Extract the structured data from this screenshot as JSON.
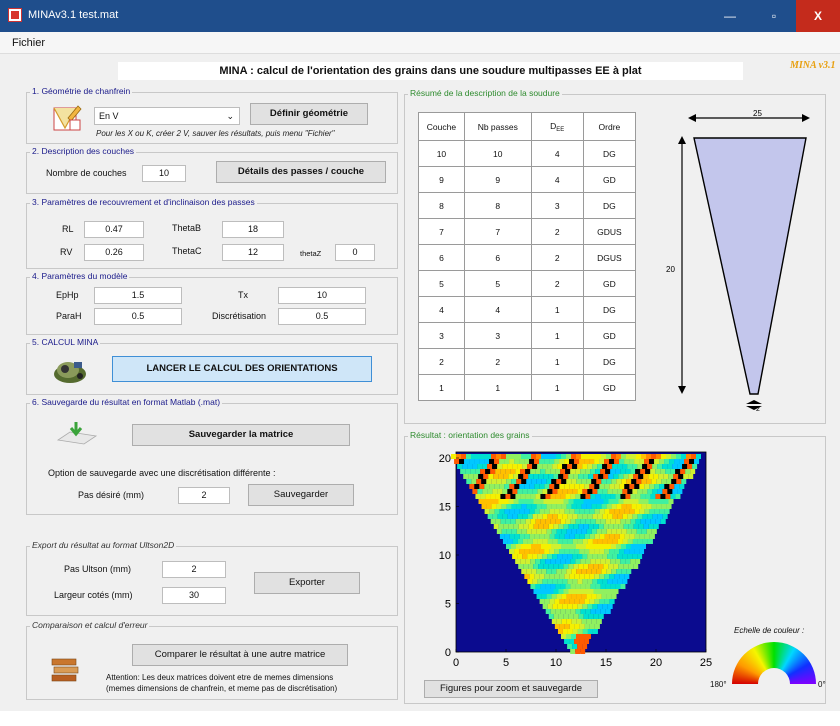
{
  "window": {
    "title": "MINAv3.1 test.mat",
    "minimize": "—",
    "maximize": "▫",
    "close": "X"
  },
  "menu": {
    "fichier": "Fichier"
  },
  "header": {
    "title": "MINA : calcul de l'orientation des grains dans une soudure multipasses EE à plat",
    "version": "MINA v3.1"
  },
  "geometry": {
    "title": "1. Géométrie de chanfrein",
    "selected": "En V",
    "define_button": "Définir géométrie",
    "hint": "Pour les X ou K, créer 2 V, sauver les résultats, puis menu \"Fichier\""
  },
  "layers": {
    "title": "2. Description des couches",
    "count_label": "Nombre de couches",
    "count_value": "10",
    "details_button": "Détails des passes / couche"
  },
  "overlap": {
    "title": "3. Paramètres de recouvrement et d'inclinaison des passes",
    "rl_label": "RL",
    "rl_value": "0.47",
    "rv_label": "RV",
    "rv_value": "0.26",
    "thetab_label": "ThetaB",
    "thetab_value": "18",
    "thetac_label": "ThetaC",
    "thetac_value": "12",
    "thetaz_label": "thetaZ",
    "thetaz_value": "0"
  },
  "model": {
    "title": "4. Paramètres du modèle",
    "ephp_label": "EpHp",
    "ephp_value": "1.5",
    "parah_label": "ParaH",
    "parah_value": "0.5",
    "tx_label": "Tx",
    "tx_value": "10",
    "discret_label": "Discrétisation",
    "discret_value": "0.5"
  },
  "calc": {
    "title": "5. CALCUL MINA",
    "button": "LANCER LE CALCUL DES ORIENTATIONS"
  },
  "save": {
    "title": "6. Sauvegarde du résultat en format Matlab (.mat)",
    "save_button": "Sauvegarder la matrice",
    "option_text": "Option de sauvegarde avec une discrétisation différente :",
    "step_label": "Pas désiré (mm)",
    "step_value": "2",
    "save2_button": "Sauvegarder"
  },
  "export": {
    "title": "Export du résultat au format Ultson2D",
    "step_label": "Pas Ultson (mm)",
    "step_value": "2",
    "width_label": "Largeur cotés (mm)",
    "width_value": "30",
    "button": "Exporter"
  },
  "compare": {
    "title": "Comparaison et calcul d'erreur",
    "button": "Comparer le résultat à une autre matrice",
    "note1": "Attention: Les deux matrices doivent etre de memes dimensions",
    "note2": "(memes dimensions de chanfrein, et meme pas de discrétisation)"
  },
  "summary": {
    "title": "Résumé de la description de la soudure",
    "headers": [
      "Couche",
      "Nb passes",
      "D",
      "Ordre"
    ],
    "header_sub": "EE",
    "rows": [
      [
        "10",
        "10",
        "4",
        "DG"
      ],
      [
        "9",
        "9",
        "4",
        "GD"
      ],
      [
        "8",
        "8",
        "3",
        "DG"
      ],
      [
        "7",
        "7",
        "2",
        "GDUS"
      ],
      [
        "6",
        "6",
        "2",
        "DGUS"
      ],
      [
        "5",
        "5",
        "2",
        "GD"
      ],
      [
        "4",
        "4",
        "1",
        "DG"
      ],
      [
        "3",
        "3",
        "1",
        "GD"
      ],
      [
        "2",
        "2",
        "1",
        "DG"
      ],
      [
        "1",
        "1",
        "1",
        "GD"
      ]
    ],
    "dim_width": "25",
    "dim_height": "20",
    "dim_bottom": "2"
  },
  "result": {
    "title": "Résultat : orientation des grains",
    "x_ticks": [
      "0",
      "5",
      "10",
      "15",
      "20",
      "25"
    ],
    "y_ticks": [
      "0",
      "5",
      "10",
      "15",
      "20"
    ],
    "figures_button": "Figures pour zoom et sauvegarde",
    "scale_label": "Echelle de couleur :",
    "scale_min": "180°",
    "scale_max": "0°",
    "colors": {
      "background": "#0b0b8f"
    }
  }
}
